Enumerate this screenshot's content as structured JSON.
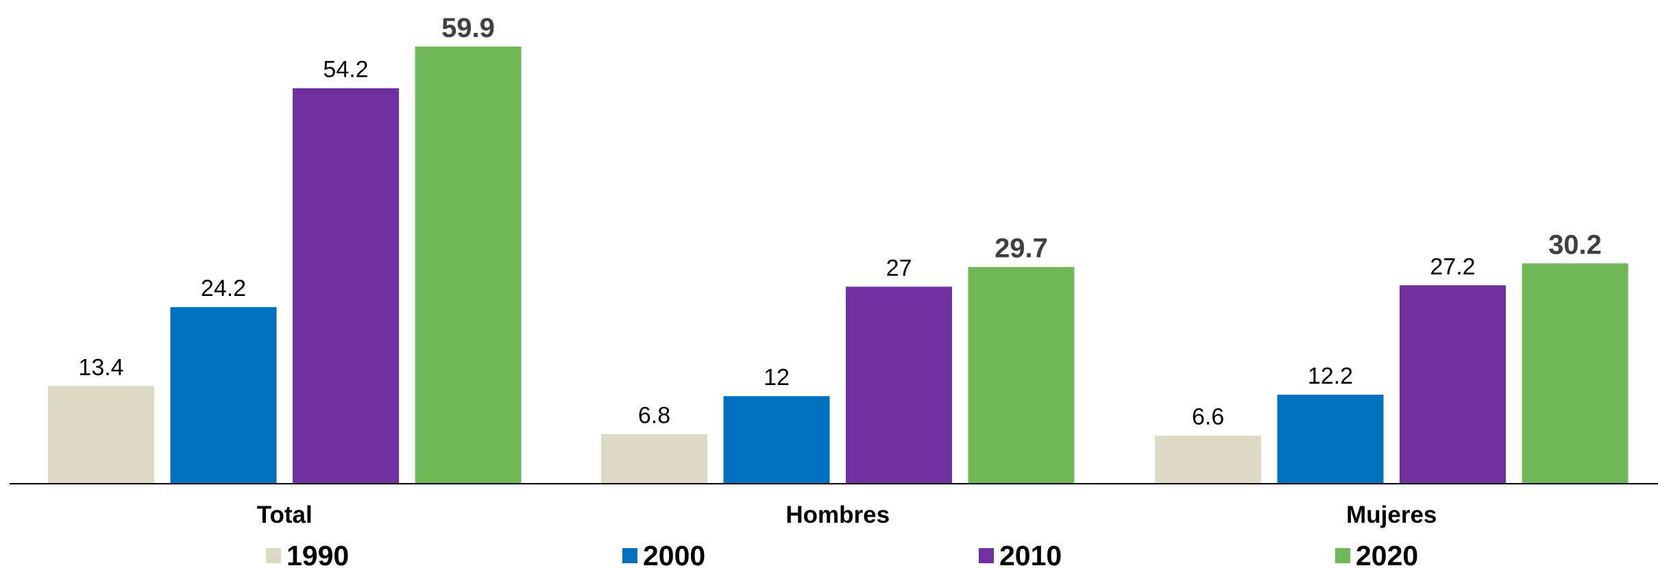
{
  "chart_data": {
    "type": "bar",
    "title": "",
    "xlabel": "",
    "ylabel": "",
    "categories": [
      "Total",
      "Hombres",
      "Mujeres"
    ],
    "series": [
      {
        "name": "1990",
        "color": "#DDD9C3",
        "values": [
          13.4,
          6.8,
          6.6
        ],
        "labels": [
          "13.4",
          "6.8",
          "6.6"
        ]
      },
      {
        "name": "2000",
        "color": "#0070C0",
        "values": [
          24.2,
          12,
          12.2
        ],
        "labels": [
          "24.2",
          "12",
          "12.2"
        ]
      },
      {
        "name": "2010",
        "color": "#7030A0",
        "values": [
          54.2,
          27,
          27.2
        ],
        "labels": [
          "54.2",
          "27",
          "27.2"
        ]
      },
      {
        "name": "2020",
        "color": "#70B857",
        "values": [
          59.9,
          29.7,
          30.2
        ],
        "labels": [
          "59.9",
          "29.7",
          "30.2"
        ]
      }
    ],
    "highlight_series": "2020",
    "ylim": [
      0,
      59.9
    ],
    "grid": false,
    "legend_position": "bottom"
  }
}
